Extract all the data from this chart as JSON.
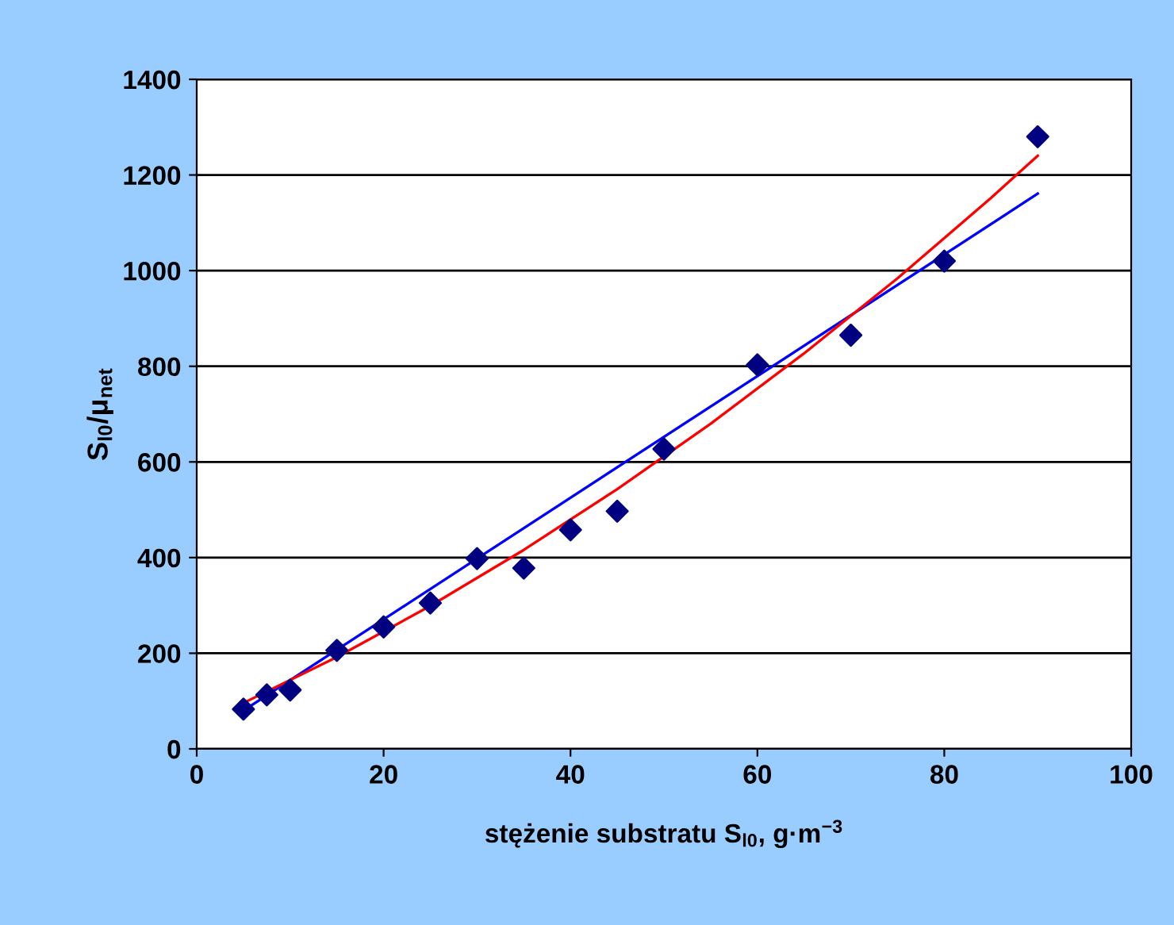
{
  "chart_data": {
    "type": "scatter",
    "xlabel": "stężenie substratu S$_{l0}$, g·m$^{−3}$",
    "ylabel": "S$_{l0}$/μ$_{net}$",
    "xlim": [
      0,
      100
    ],
    "xticks": [
      0,
      20,
      40,
      60,
      80,
      100
    ],
    "ylim": [
      0,
      1400
    ],
    "yticks": [
      0,
      200,
      400,
      600,
      800,
      1000,
      1200,
      1400
    ],
    "grid": "y",
    "legend": false,
    "marker": "diamond",
    "series": [
      {
        "color": "#000080",
        "x": [
          5,
          7.5,
          10,
          15,
          20,
          25,
          30,
          35,
          40,
          45,
          50,
          60,
          70,
          80,
          90
        ],
        "values": [
          83,
          113,
          123,
          206,
          255,
          305,
          398,
          378,
          458,
          497,
          627,
          803,
          865,
          1020,
          1280
        ]
      },
      {
        "type": "line",
        "marker": "none",
        "color": "#0000ff",
        "x": [
          5,
          90
        ],
        "values": [
          80,
          1161
        ]
      },
      {
        "type": "line",
        "marker": "none",
        "color": "#ff0000",
        "x": [
          5,
          15,
          25,
          35,
          45,
          55,
          65,
          75,
          85,
          90
        ],
        "values": [
          96,
          192,
          299,
          416,
          543,
          680,
          827,
          984,
          1152,
          1240
        ]
      }
    ]
  }
}
